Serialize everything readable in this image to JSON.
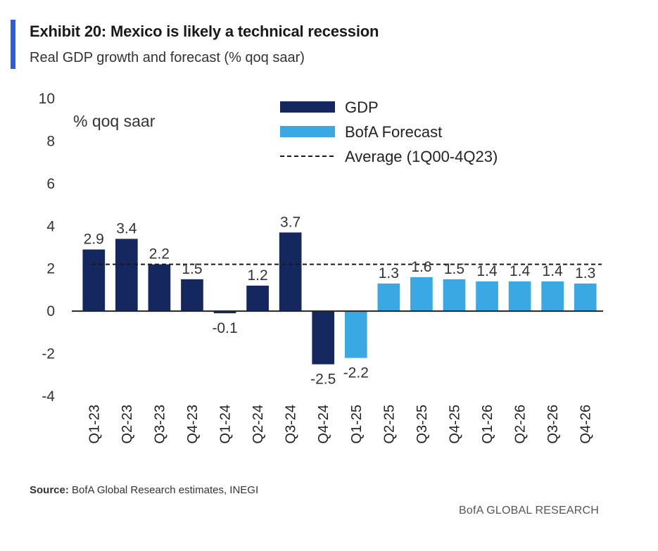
{
  "header": {
    "title": "Exhibit 20: Mexico is likely a technical recession",
    "subtitle": "Real GDP growth and forecast (% qoq saar)"
  },
  "footer": {
    "source_label": "Source:",
    "source_text": " BofA Global Research estimates, INEGI",
    "brand": "BofA GLOBAL RESEARCH"
  },
  "colors": {
    "gdp": "#14275f",
    "forecast": "#3aa9e3",
    "average": "#1a1a1a"
  },
  "chart_data": {
    "type": "bar",
    "title": "Exhibit 20: Mexico is likely a technical recession",
    "subtitle": "Real GDP growth and forecast (% qoq saar)",
    "ylabel": "% qoq saar",
    "xlabel": "",
    "ylim": [
      -4,
      10
    ],
    "yticks": [
      10,
      8,
      6,
      4,
      2,
      0,
      -2,
      -4
    ],
    "grid": false,
    "legend_position": "top-right",
    "categories": [
      "Q1-23",
      "Q2-23",
      "Q3-23",
      "Q4-23",
      "Q1-24",
      "Q2-24",
      "Q3-24",
      "Q4-24",
      "Q1-25",
      "Q2-25",
      "Q3-25",
      "Q4-25",
      "Q1-26",
      "Q2-26",
      "Q3-26",
      "Q4-26"
    ],
    "values": [
      2.9,
      3.4,
      2.2,
      1.5,
      -0.1,
      1.2,
      3.7,
      -2.5,
      -2.2,
      1.3,
      1.6,
      1.5,
      1.4,
      1.4,
      1.4,
      1.3
    ],
    "series_type": [
      "GDP",
      "GDP",
      "GDP",
      "GDP",
      "GDP",
      "GDP",
      "GDP",
      "GDP",
      "BofA Forecast",
      "BofA Forecast",
      "BofA Forecast",
      "BofA Forecast",
      "BofA Forecast",
      "BofA Forecast",
      "BofA Forecast",
      "BofA Forecast"
    ],
    "average": 2.2,
    "legend": [
      "GDP",
      "BofA Forecast",
      "Average (1Q00-4Q23)"
    ]
  }
}
